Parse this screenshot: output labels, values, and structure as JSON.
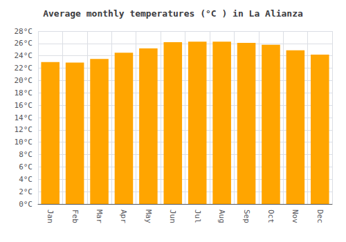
{
  "chart_data": {
    "type": "bar",
    "title": "Average monthly temperatures (°C ) in La Alianza",
    "categories": [
      "Jan",
      "Feb",
      "Mar",
      "Apr",
      "May",
      "Jun",
      "Jul",
      "Aug",
      "Sep",
      "Oct",
      "Nov",
      "Dec"
    ],
    "values": [
      23.0,
      22.9,
      23.5,
      24.5,
      25.2,
      26.2,
      26.3,
      26.3,
      26.1,
      25.8,
      24.9,
      24.2
    ],
    "color": "#FFA500",
    "ylim": [
      0,
      28
    ],
    "yticks": [
      {
        "value": 0,
        "label": "0°C"
      },
      {
        "value": 2,
        "label": "2°C"
      },
      {
        "value": 4,
        "label": "4°C"
      },
      {
        "value": 6,
        "label": "6°C"
      },
      {
        "value": 8,
        "label": "8°C"
      },
      {
        "value": 10,
        "label": "10°C"
      },
      {
        "value": 12,
        "label": "12°C"
      },
      {
        "value": 14,
        "label": "14°C"
      },
      {
        "value": 16,
        "label": "16°C"
      },
      {
        "value": 18,
        "label": "18°C"
      },
      {
        "value": 20,
        "label": "20°C"
      },
      {
        "value": 22,
        "label": "22°C"
      },
      {
        "value": 24,
        "label": "24°C"
      },
      {
        "value": 26,
        "label": "26°C"
      },
      {
        "value": 28,
        "label": "28°C"
      }
    ],
    "grid": true
  }
}
